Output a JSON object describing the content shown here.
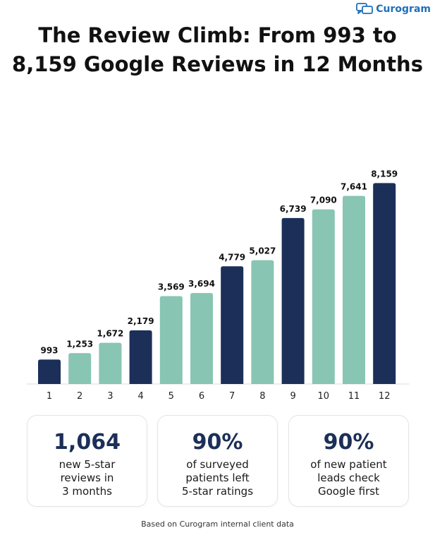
{
  "brand": {
    "name": "Curogram",
    "logo_icon": "chat-bubbles-icon"
  },
  "colors": {
    "dark": "#1b2f58",
    "teal": "#88c5b2",
    "brand": "#1f6fb8"
  },
  "chart_data": {
    "type": "bar",
    "title": [
      "The Review Climb: From 993 to",
      "8,159 Google Reviews in 12 Months"
    ],
    "categories": [
      "1",
      "2",
      "3",
      "4",
      "5",
      "6",
      "7",
      "8",
      "9",
      "10",
      "11",
      "12"
    ],
    "values": [
      993,
      1253,
      1672,
      2179,
      3569,
      3694,
      4779,
      5027,
      6739,
      7090,
      7641,
      8159
    ],
    "value_labels": [
      "993",
      "1,253",
      "1,672",
      "2,179",
      "3,569",
      "3,694",
      "4,779",
      "5,027",
      "6,739",
      "7,090",
      "7,641",
      "8,159"
    ],
    "bar_colors": [
      "#1b2f58",
      "#88c5b2",
      "#88c5b2",
      "#1b2f58",
      "#88c5b2",
      "#88c5b2",
      "#1b2f58",
      "#88c5b2",
      "#1b2f58",
      "#88c5b2",
      "#88c5b2",
      "#1b2f58"
    ],
    "ylim": [
      0,
      8600
    ],
    "grid": false,
    "legend": "none"
  },
  "stats": [
    {
      "value": "1,064",
      "lines": [
        "new 5-star",
        "reviews in",
        "3 months"
      ]
    },
    {
      "value": "90%",
      "lines": [
        "of surveyed",
        "patients left",
        "5-star ratings"
      ]
    },
    {
      "value": "90%",
      "lines": [
        "of new patient",
        "leads check",
        "Google first"
      ]
    }
  ],
  "footnote": "Based on Curogram internal client data"
}
